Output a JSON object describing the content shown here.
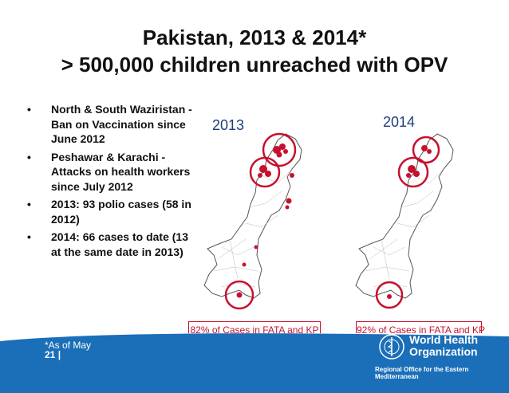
{
  "title_line1": "Pakistan, 2013 & 2014*",
  "title_line2": "> 500,000 children unreached with OPV",
  "bullets": [
    {
      "marker": "•",
      "text": "North & South Waziristan - Ban on Vaccination since June 2012"
    },
    {
      "marker": "•",
      "text": "Peshawar & Karachi - Attacks on health workers since July 2012"
    },
    {
      "marker": "•",
      "text": "2013: 93 polio cases (58 in 2012)"
    },
    {
      "marker": "•",
      "text": "2014: 66 cases to date (13 at the same date in 2013)"
    }
  ],
  "maps": {
    "left": {
      "year": "2013",
      "caption": "82% of Cases in FATA and KP"
    },
    "right": {
      "year": "2014",
      "caption": "92% of Cases in FATA and KP"
    }
  },
  "footer": {
    "footnote": "*As of May",
    "page_number": "21",
    "org_name_line1": "World Health",
    "org_name_line2": "Organization",
    "region": "Regional Office for the Eastern Mediterranean"
  },
  "colors": {
    "accent_red": "#c8102e",
    "year_blue": "#1f3e7a",
    "footer_blue": "#1a6fb8"
  }
}
